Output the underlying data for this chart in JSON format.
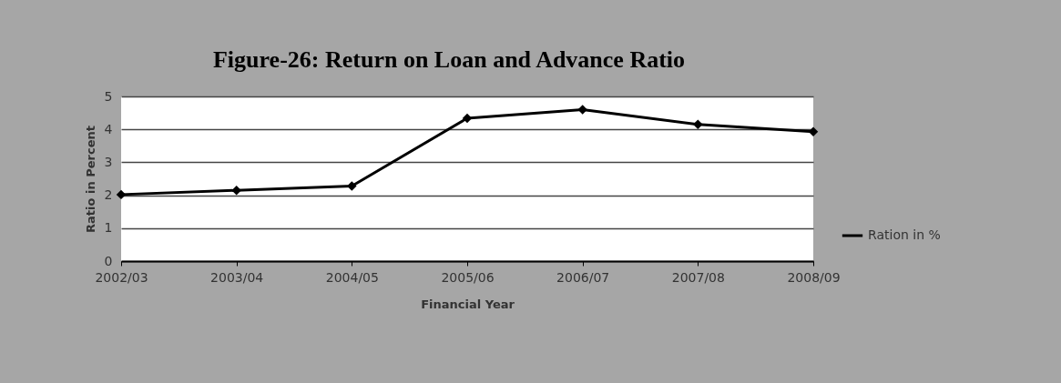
{
  "chart_data": {
    "type": "line",
    "title": "Figure-26: Return on Loan and Advance Ratio",
    "xlabel": "Financial Year",
    "ylabel": "Ratio in Percent",
    "categories": [
      "2002/03",
      "2003/04",
      "2004/05",
      "2005/06",
      "2006/07",
      "2007/08",
      "2008/09"
    ],
    "series": [
      {
        "name": "Ration in %",
        "color": "#000000",
        "values": [
          2.02,
          2.15,
          2.28,
          4.34,
          4.6,
          4.15,
          3.93
        ]
      }
    ],
    "ylim": [
      0,
      5
    ],
    "yticks": [
      0,
      1,
      2,
      3,
      4,
      5
    ],
    "grid": "y",
    "legend": "right",
    "marker": "diamond",
    "line_style": "solid"
  }
}
